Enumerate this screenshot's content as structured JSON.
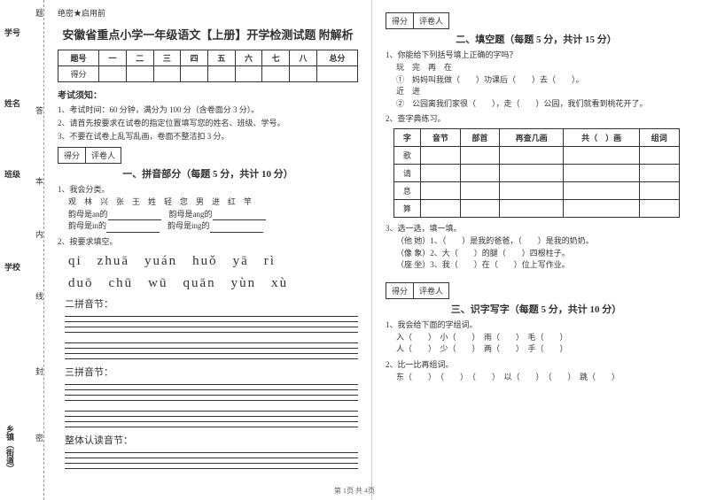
{
  "binding": {
    "f1": "学号",
    "f2": "姓名",
    "f3": "班级",
    "f4": "学校",
    "f5": "乡镇（街道）",
    "c1": "题",
    "c2": "答",
    "c3": "本",
    "c4": "内",
    "c5": "线",
    "c6": "封",
    "c7": "密"
  },
  "confidential": "绝密★启用前",
  "title": "安徽省重点小学一年级语文【上册】开学检测试题 附解析",
  "score_headers": [
    "题号",
    "一",
    "二",
    "三",
    "四",
    "五",
    "六",
    "七",
    "八",
    "总分"
  ],
  "score_row": "得分",
  "notice_title": "考试须知：",
  "notices": [
    "1、考试时间：60 分钟，满分为 100 分（含卷面分 3 分）。",
    "2、请首先按要求在试卷的指定位置填写您的姓名、班级、学号。",
    "3、不要在试卷上乱写乱画，卷面不整洁扣 3 分。"
  ],
  "box": {
    "a": "得分",
    "b": "评卷人"
  },
  "sec1": {
    "title": "一、拼音部分（每题 5 分，共计 10 分）",
    "q1": "1、我会分类。",
    "chars": "观　林　兴　张　王　姓　轻　您　男　进　红　竿",
    "l1a": "韵母是an的",
    "l1b": "韵母是ang的",
    "l2a": "韵母是in的",
    "l2b": "韵母是ing的",
    "q2": "2、按要求填空。",
    "pinyin1": "qi　zhuā　yuán　huǒ　yā　rì",
    "pinyin2": "duō　chū　wū　quān　yùn　xù",
    "cat1": "二拼音节：",
    "cat2": "三拼音节：",
    "cat3": "整体认读音节："
  },
  "sec2": {
    "title": "二、填空题（每题 5 分，共计 15 分）",
    "q1": "1、你能给下列括号填上正确的字吗？",
    "r1": "玩　完　再　在",
    "r2": "①　妈妈叫我做（　　）功课后（　　）去（　　）。",
    "r3": "近　进",
    "r4": "②　公园离我们家很（　　），走（　　）公园，我们就看到桃花开了。",
    "q2": "2、查字典练习。",
    "char_headers": [
      "字",
      "音节",
      "部首",
      "再查几画",
      "共（　）画",
      "组词"
    ],
    "char_rows": [
      "歌",
      "请",
      "息",
      "算"
    ],
    "q3": "3、选一选，填一填。",
    "s1": "（他 她）1、（　　）是我的爸爸，（　　）是我的奶奶。",
    "s2": "（像 象）2、大（　　）的腿（　　）四根柱子。",
    "s3": "（座 坐）3、我（　　）在（　　）位上写作业。"
  },
  "sec3": {
    "title": "三、识字写字（每题 5 分，共计 10 分）",
    "q1": "1、我会给下面的字组词。",
    "r1": "入（　　）　小（　　）　雨（　　）　毛（　　）",
    "r2": "人（　　）　少（　　）　两（　　）　手（　　）",
    "q2": "2、比一比再组词。",
    "r3": "东（　　）　（　　）　（　　）　以（　　）　（　　）　跳（　　）"
  },
  "footer": "第 1页 共 4页"
}
